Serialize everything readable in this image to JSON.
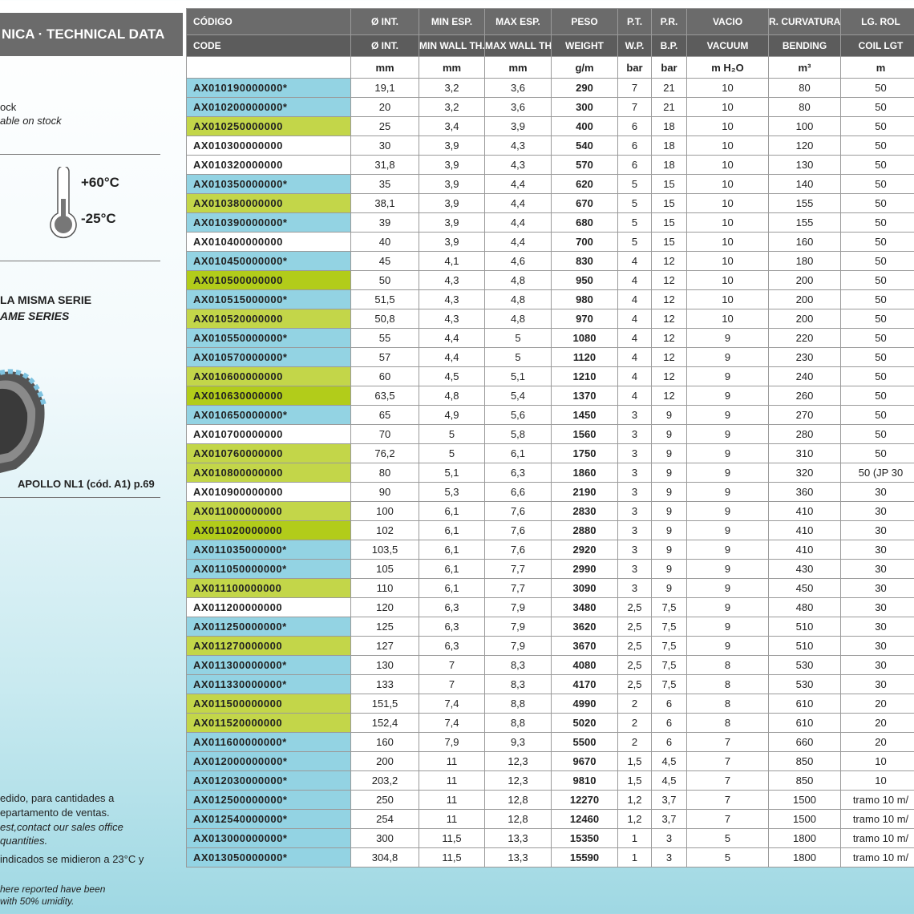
{
  "panel": {
    "title": "NICA · TECHNICAL DATA",
    "stock_es": "ock",
    "stock_en": "able on stock",
    "temp_max": "+60°C",
    "temp_min": "-25°C",
    "series_es": "LA MISMA SERIE",
    "series_en": "AME SERIES",
    "related": "APOLLO NL1  (cód. A1) p.69",
    "notes": [
      "edido, para cantidades a",
      "epartamento de ventas.",
      "est,contact our sales office",
      "quantities.",
      "indicados se midieron a 23°C y",
      "here reported have been",
      "with 50% umidity."
    ]
  },
  "table": {
    "header_es": [
      "CÓDIGO",
      "Ø INT.",
      "MIN ESP.",
      "MAX ESP.",
      "PESO",
      "P.T.",
      "P.R.",
      "VACIO",
      "R. CURVATURA",
      "LG. ROL"
    ],
    "header_en": [
      "CODE",
      "Ø INT.",
      "MIN WALL TH.",
      "MAX WALL TH.",
      "WEIGHT",
      "W.P.",
      "B.P.",
      "VACUUM",
      "BENDING",
      "COIL LGT"
    ],
    "units": [
      "mm",
      "mm",
      "mm",
      "g/m",
      "bar",
      "bar",
      "m H₂O",
      "m³",
      "m"
    ],
    "row_colors": [
      "#93d3e3",
      "#93d3e3",
      "#c3d649",
      "#ffffff",
      "#ffffff",
      "#93d3e3",
      "#c3d649",
      "#93d3e3",
      "#ffffff",
      "#93d3e3",
      "#b2cc1a",
      "#93d3e3",
      "#c3d649",
      "#93d3e3",
      "#93d3e3",
      "#c3d649",
      "#b2cc1a",
      "#93d3e3",
      "#ffffff",
      "#c3d649",
      "#c3d649",
      "#ffffff",
      "#c3d649",
      "#b2cc1a",
      "#93d3e3",
      "#93d3e3",
      "#c3d649",
      "#ffffff",
      "#93d3e3",
      "#c3d649",
      "#93d3e3",
      "#93d3e3",
      "#c3d649",
      "#c3d649",
      "#93d3e3",
      "#93d3e3",
      "#93d3e3",
      "#93d3e3",
      "#93d3e3",
      "#93d3e3",
      "#93d3e3"
    ],
    "rows": [
      [
        "AX010190000000*",
        "19,1",
        "3,2",
        "3,6",
        "290",
        "7",
        "21",
        "10",
        "80",
        "50"
      ],
      [
        "AX010200000000*",
        "20",
        "3,2",
        "3,6",
        "300",
        "7",
        "21",
        "10",
        "80",
        "50"
      ],
      [
        "AX010250000000",
        "25",
        "3,4",
        "3,9",
        "400",
        "6",
        "18",
        "10",
        "100",
        "50"
      ],
      [
        "AX010300000000",
        "30",
        "3,9",
        "4,3",
        "540",
        "6",
        "18",
        "10",
        "120",
        "50"
      ],
      [
        "AX010320000000",
        "31,8",
        "3,9",
        "4,3",
        "570",
        "6",
        "18",
        "10",
        "130",
        "50"
      ],
      [
        "AX010350000000*",
        "35",
        "3,9",
        "4,4",
        "620",
        "5",
        "15",
        "10",
        "140",
        "50"
      ],
      [
        "AX010380000000",
        "38,1",
        "3,9",
        "4,4",
        "670",
        "5",
        "15",
        "10",
        "155",
        "50"
      ],
      [
        "AX010390000000*",
        "39",
        "3,9",
        "4,4",
        "680",
        "5",
        "15",
        "10",
        "155",
        "50"
      ],
      [
        "AX010400000000",
        "40",
        "3,9",
        "4,4",
        "700",
        "5",
        "15",
        "10",
        "160",
        "50"
      ],
      [
        "AX010450000000*",
        "45",
        "4,1",
        "4,6",
        "830",
        "4",
        "12",
        "10",
        "180",
        "50"
      ],
      [
        "AX010500000000",
        "50",
        "4,3",
        "4,8",
        "950",
        "4",
        "12",
        "10",
        "200",
        "50"
      ],
      [
        "AX010515000000*",
        "51,5",
        "4,3",
        "4,8",
        "980",
        "4",
        "12",
        "10",
        "200",
        "50"
      ],
      [
        "AX010520000000",
        "50,8",
        "4,3",
        "4,8",
        "970",
        "4",
        "12",
        "10",
        "200",
        "50"
      ],
      [
        "AX010550000000*",
        "55",
        "4,4",
        "5",
        "1080",
        "4",
        "12",
        "9",
        "220",
        "50"
      ],
      [
        "AX010570000000*",
        "57",
        "4,4",
        "5",
        "1120",
        "4",
        "12",
        "9",
        "230",
        "50"
      ],
      [
        "AX010600000000",
        "60",
        "4,5",
        "5,1",
        "1210",
        "4",
        "12",
        "9",
        "240",
        "50"
      ],
      [
        "AX010630000000",
        "63,5",
        "4,8",
        "5,4",
        "1370",
        "4",
        "12",
        "9",
        "260",
        "50"
      ],
      [
        "AX010650000000*",
        "65",
        "4,9",
        "5,6",
        "1450",
        "3",
        "9",
        "9",
        "270",
        "50"
      ],
      [
        "AX010700000000",
        "70",
        "5",
        "5,8",
        "1560",
        "3",
        "9",
        "9",
        "280",
        "50"
      ],
      [
        "AX010760000000",
        "76,2",
        "5",
        "6,1",
        "1750",
        "3",
        "9",
        "9",
        "310",
        "50"
      ],
      [
        "AX010800000000",
        "80",
        "5,1",
        "6,3",
        "1860",
        "3",
        "9",
        "9",
        "320",
        "50 (JP 30"
      ],
      [
        "AX010900000000",
        "90",
        "5,3",
        "6,6",
        "2190",
        "3",
        "9",
        "9",
        "360",
        "30"
      ],
      [
        "AX011000000000",
        "100",
        "6,1",
        "7,6",
        "2830",
        "3",
        "9",
        "9",
        "410",
        "30"
      ],
      [
        "AX011020000000",
        "102",
        "6,1",
        "7,6",
        "2880",
        "3",
        "9",
        "9",
        "410",
        "30"
      ],
      [
        "AX011035000000*",
        "103,5",
        "6,1",
        "7,6",
        "2920",
        "3",
        "9",
        "9",
        "410",
        "30"
      ],
      [
        "AX011050000000*",
        "105",
        "6,1",
        "7,7",
        "2990",
        "3",
        "9",
        "9",
        "430",
        "30"
      ],
      [
        "AX011100000000",
        "110",
        "6,1",
        "7,7",
        "3090",
        "3",
        "9",
        "9",
        "450",
        "30"
      ],
      [
        "AX011200000000",
        "120",
        "6,3",
        "7,9",
        "3480",
        "2,5",
        "7,5",
        "9",
        "480",
        "30"
      ],
      [
        "AX011250000000*",
        "125",
        "6,3",
        "7,9",
        "3620",
        "2,5",
        "7,5",
        "9",
        "510",
        "30"
      ],
      [
        "AX011270000000",
        "127",
        "6,3",
        "7,9",
        "3670",
        "2,5",
        "7,5",
        "9",
        "510",
        "30"
      ],
      [
        "AX011300000000*",
        "130",
        "7",
        "8,3",
        "4080",
        "2,5",
        "7,5",
        "8",
        "530",
        "30"
      ],
      [
        "AX011330000000*",
        "133",
        "7",
        "8,3",
        "4170",
        "2,5",
        "7,5",
        "8",
        "530",
        "30"
      ],
      [
        "AX011500000000",
        "151,5",
        "7,4",
        "8,8",
        "4990",
        "2",
        "6",
        "8",
        "610",
        "20"
      ],
      [
        "AX011520000000",
        "152,4",
        "7,4",
        "8,8",
        "5020",
        "2",
        "6",
        "8",
        "610",
        "20"
      ],
      [
        "AX011600000000*",
        "160",
        "7,9",
        "9,3",
        "5500",
        "2",
        "6",
        "7",
        "660",
        "20"
      ],
      [
        "AX012000000000*",
        "200",
        "11",
        "12,3",
        "9670",
        "1,5",
        "4,5",
        "7",
        "850",
        "10"
      ],
      [
        "AX012030000000*",
        "203,2",
        "11",
        "12,3",
        "9810",
        "1,5",
        "4,5",
        "7",
        "850",
        "10"
      ],
      [
        "AX012500000000*",
        "250",
        "11",
        "12,8",
        "12270",
        "1,2",
        "3,7",
        "7",
        "1500",
        "tramo 10 m/"
      ],
      [
        "AX012540000000*",
        "254",
        "11",
        "12,8",
        "12460",
        "1,2",
        "3,7",
        "7",
        "1500",
        "tramo 10 m/"
      ],
      [
        "AX013000000000*",
        "300",
        "11,5",
        "13,3",
        "15350",
        "1",
        "3",
        "5",
        "1800",
        "tramo 10 m/"
      ],
      [
        "AX013050000000*",
        "304,8",
        "11,5",
        "13,3",
        "15590",
        "1",
        "3",
        "5",
        "1800",
        "tramo 10 m/"
      ]
    ]
  }
}
